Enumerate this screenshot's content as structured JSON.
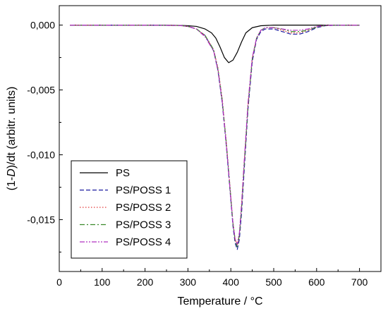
{
  "chart_data": {
    "type": "line",
    "title": "",
    "xlabel": "Temperature / °C",
    "ylabel_prefix": "(1-",
    "ylabel_italic": "D",
    "ylabel_suffix": ")/dt (arbitr. units)",
    "xlim": [
      0,
      750
    ],
    "ylim": [
      -0.019,
      0.0015
    ],
    "x_ticks": [
      0,
      100,
      200,
      300,
      400,
      500,
      600,
      700
    ],
    "y_ticks": [
      0.0,
      -0.005,
      -0.01,
      -0.015
    ],
    "y_tick_labels": [
      "0,000",
      "-0,005",
      "-0,010",
      "-0,015"
    ],
    "legend_position": "lower-left",
    "series": [
      {
        "name": "PS",
        "color": "#000000",
        "dash": "solid",
        "x": [
          25,
          100,
          200,
          280,
          300,
          320,
          340,
          355,
          365,
          375,
          385,
          395,
          405,
          415,
          425,
          435,
          450,
          470,
          500,
          600,
          700
        ],
        "y": [
          0,
          0,
          0,
          -2e-05,
          -5e-05,
          -0.0001,
          -0.0003,
          -0.0006,
          -0.001,
          -0.0017,
          -0.0025,
          -0.0029,
          -0.0027,
          -0.0021,
          -0.0013,
          -0.0006,
          -0.0002,
          -5e-05,
          0,
          0,
          0
        ]
      },
      {
        "name": "PS/POSS 1",
        "color": "#1a1aa0",
        "dash": "dashed",
        "x": [
          25,
          100,
          200,
          280,
          300,
          320,
          340,
          360,
          370,
          380,
          390,
          400,
          405,
          410,
          415,
          420,
          425,
          430,
          440,
          450,
          460,
          470,
          480,
          500,
          520,
          540,
          560,
          580,
          600,
          620,
          650,
          700
        ],
        "y": [
          0,
          0,
          0,
          -3e-05,
          -0.0001,
          -0.0003,
          -0.0008,
          -0.002,
          -0.0035,
          -0.006,
          -0.0095,
          -0.0135,
          -0.0155,
          -0.0168,
          -0.0173,
          -0.0165,
          -0.0145,
          -0.0118,
          -0.0065,
          -0.0028,
          -0.0011,
          -0.0005,
          -0.0003,
          -0.0003,
          -0.0005,
          -0.0007,
          -0.0007,
          -0.0005,
          -0.0002,
          -5e-05,
          0,
          0
        ]
      },
      {
        "name": "PS/POSS 2",
        "color": "#e23a3a",
        "dash": "dotted",
        "x": [
          25,
          100,
          200,
          280,
          300,
          320,
          340,
          360,
          370,
          380,
          390,
          400,
          405,
          410,
          415,
          420,
          425,
          430,
          440,
          450,
          460,
          470,
          480,
          500,
          520,
          540,
          560,
          580,
          600,
          620,
          650,
          700
        ],
        "y": [
          0,
          0,
          0,
          -3e-05,
          -0.0001,
          -0.0003,
          -0.0008,
          -0.0019,
          -0.0033,
          -0.0057,
          -0.0092,
          -0.0132,
          -0.0152,
          -0.0165,
          -0.017,
          -0.0161,
          -0.014,
          -0.0113,
          -0.0062,
          -0.0026,
          -0.001,
          -0.0004,
          -0.0002,
          -0.0002,
          -0.0004,
          -0.0006,
          -0.0006,
          -0.0004,
          -0.00015,
          -3e-05,
          0,
          0
        ]
      },
      {
        "name": "PS/POSS 3",
        "color": "#3a8a2a",
        "dash": "dashdot",
        "x": [
          25,
          100,
          200,
          280,
          300,
          320,
          340,
          360,
          370,
          380,
          390,
          400,
          405,
          410,
          415,
          420,
          425,
          430,
          440,
          450,
          460,
          470,
          480,
          500,
          520,
          540,
          560,
          580,
          600,
          620,
          650,
          700
        ],
        "y": [
          0,
          0,
          0,
          -3e-05,
          -0.0001,
          -0.0003,
          -0.0008,
          -0.0019,
          -0.0034,
          -0.0058,
          -0.0093,
          -0.0133,
          -0.0153,
          -0.0166,
          -0.0171,
          -0.0162,
          -0.0141,
          -0.0114,
          -0.0063,
          -0.0026,
          -0.001,
          -0.0004,
          -0.0002,
          -0.0002,
          -0.0003,
          -0.0005,
          -0.0005,
          -0.0004,
          -0.00015,
          -3e-05,
          0,
          0
        ]
      },
      {
        "name": "PS/POSS 4",
        "color": "#b030c0",
        "dash": "dashdotdot",
        "x": [
          25,
          100,
          200,
          280,
          300,
          320,
          340,
          360,
          370,
          380,
          390,
          400,
          405,
          410,
          415,
          420,
          425,
          430,
          440,
          450,
          460,
          470,
          480,
          500,
          520,
          540,
          560,
          580,
          600,
          620,
          650,
          700
        ],
        "y": [
          0,
          0,
          0,
          -3e-05,
          -0.0001,
          -0.0003,
          -0.0009,
          -0.002,
          -0.0035,
          -0.0059,
          -0.0094,
          -0.0134,
          -0.0153,
          -0.0165,
          -0.0169,
          -0.016,
          -0.0138,
          -0.0111,
          -0.006,
          -0.0025,
          -0.001,
          -0.0004,
          -0.0002,
          -0.0002,
          -0.0003,
          -0.0004,
          -0.0004,
          -0.0003,
          -0.0001,
          -2e-05,
          0,
          0
        ]
      }
    ]
  }
}
